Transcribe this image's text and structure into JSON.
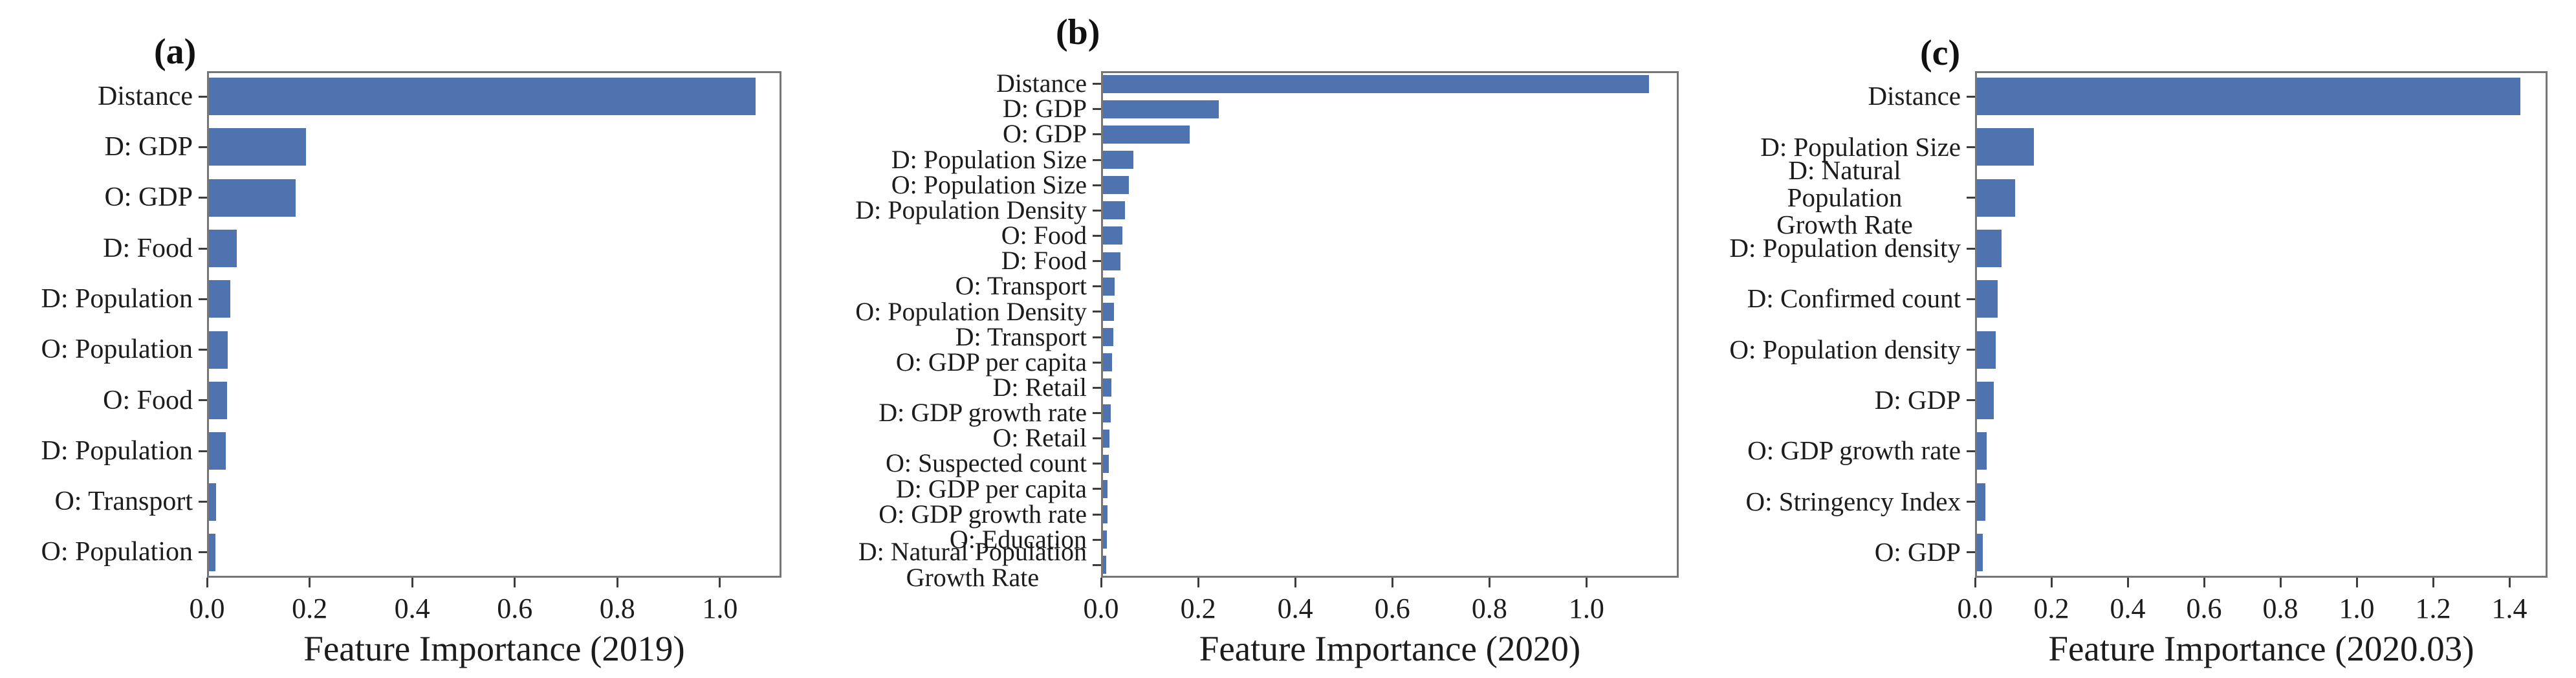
{
  "figure": {
    "bar_color": "#4f73af",
    "spine_color": "#767676",
    "tick_color": "#3d3d3d",
    "text_color": "#1c1c1c",
    "background": "#ffffff"
  },
  "chart_data": [
    {
      "type": "bar",
      "orientation": "horizontal",
      "panel_label": "(a)",
      "xlabel": "Feature Importance (2019)",
      "xlim": [
        0,
        1.12
      ],
      "xticks": [
        "0.0",
        "0.2",
        "0.4",
        "0.6",
        "0.8",
        "1.0"
      ],
      "grid": false,
      "categories": [
        "Distance",
        "D: GDP",
        "O: GDP",
        "D: Food",
        "D: Population",
        "O: Population",
        "O: Food",
        "D: Population",
        "O: Transport",
        "O: Population"
      ],
      "values": [
        1.07,
        0.19,
        0.17,
        0.054,
        0.042,
        0.037,
        0.035,
        0.033,
        0.014,
        0.013
      ]
    },
    {
      "type": "bar",
      "orientation": "horizontal",
      "panel_label": "(b)",
      "xlabel": "Feature Importance (2020)",
      "xlim": [
        0,
        1.19
      ],
      "xticks": [
        "0.0",
        "0.2",
        "0.4",
        "0.6",
        "0.8",
        "1.0"
      ],
      "grid": false,
      "categories": [
        "Distance",
        "D: GDP",
        "O: GDP",
        "D: Population Size",
        "O: Population Size",
        "D: Population Density",
        "O: Food",
        "D: Food",
        "O: Transport",
        "O: Population Density",
        "D: Transport",
        "O: GDP per capita",
        "D: Retail",
        "D: GDP growth rate",
        "O: Retail",
        "O: Suspected count",
        "D: GDP per capita",
        "O: GDP growth rate",
        "O: Education",
        "D: Natural Population\nGrowth Rate"
      ],
      "values": [
        1.13,
        0.24,
        0.18,
        0.063,
        0.053,
        0.045,
        0.04,
        0.036,
        0.024,
        0.023,
        0.022,
        0.019,
        0.018,
        0.016,
        0.014,
        0.012,
        0.01,
        0.009,
        0.008,
        0.007
      ]
    },
    {
      "type": "bar",
      "orientation": "horizontal",
      "panel_label": "(c)",
      "xlabel": "Feature Importance (2020.03)",
      "xlim": [
        0,
        1.5
      ],
      "xticks": [
        "0.0",
        "0.2",
        "0.4",
        "0.6",
        "0.8",
        "1.0",
        "1.2",
        "1.4"
      ],
      "grid": false,
      "categories": [
        "Distance",
        "D: Population Size",
        "D: Natural Population\nGrowth Rate",
        "D: Population density",
        "D: Confirmed count",
        "O: Population density",
        "D: GDP",
        "O: GDP growth rate",
        "O: Stringency Index",
        "O: GDP"
      ],
      "values": [
        1.43,
        0.15,
        0.1,
        0.065,
        0.055,
        0.05,
        0.045,
        0.025,
        0.022,
        0.015
      ]
    }
  ]
}
